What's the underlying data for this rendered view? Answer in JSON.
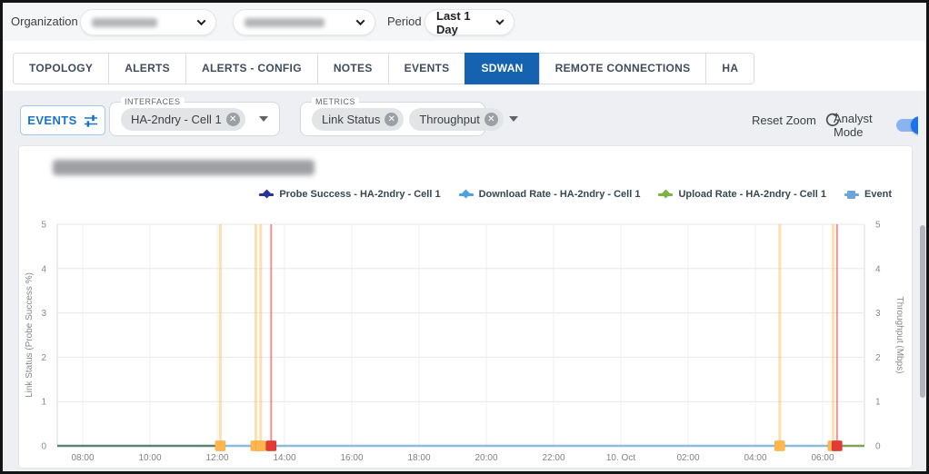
{
  "topbar": {
    "organization_label": "Organization",
    "organization_select": {
      "value_redacted": true
    },
    "device_select": {
      "value_redacted": true
    },
    "period_label": "Period",
    "period_value": "Last 1 Day"
  },
  "tabs": [
    {
      "label": "TOPOLOGY",
      "active": false
    },
    {
      "label": "ALERTS",
      "active": false
    },
    {
      "label": "ALERTS - CONFIG",
      "active": false
    },
    {
      "label": "NOTES",
      "active": false
    },
    {
      "label": "EVENTS",
      "active": false
    },
    {
      "label": "SDWAN",
      "active": true
    },
    {
      "label": "REMOTE CONNECTIONS",
      "active": false
    },
    {
      "label": "HA",
      "active": false
    }
  ],
  "toolbar": {
    "events_button_label": "EVENTS",
    "interfaces_select": {
      "label": "INTERFACES",
      "chips": [
        "HA-2ndry - Cell 1"
      ]
    },
    "metrics_select": {
      "label": "METRICS",
      "chips": [
        "Link Status",
        "Throughput"
      ]
    },
    "reset_zoom_label": "Reset Zoom",
    "analyst_mode": {
      "label": "Analyst Mode",
      "enabled": true
    }
  },
  "chart_data": {
    "type": "line",
    "title_redacted": true,
    "x_ticks": [
      "08:00",
      "10:00",
      "12:00",
      "14:00",
      "16:00",
      "18:00",
      "20:00",
      "22:00",
      "10. Oct",
      "02:00",
      "04:00",
      "06:00"
    ],
    "y_axis_left": {
      "label": "Link Status (Probe Success %)",
      "min": 0,
      "max": 5,
      "ticks": [
        0,
        1,
        2,
        3,
        4,
        5
      ]
    },
    "y_axis_right": {
      "label": "Throughput (Mbps)",
      "min": 0,
      "max": 5,
      "ticks": [
        0,
        1,
        2,
        3,
        4,
        5
      ]
    },
    "series": [
      {
        "name": "Probe Success - HA-2ndry - Cell 1",
        "color": "#283593",
        "kind": "line",
        "constant_value": 0
      },
      {
        "name": "Download Rate - HA-2ndry - Cell 1",
        "color": "#4aa3df",
        "kind": "line",
        "constant_value": 0
      },
      {
        "name": "Upload Rate - HA-2ndry - Cell 1",
        "color": "#7cb342",
        "kind": "line",
        "constant_value": 0
      },
      {
        "name": "Event",
        "color": "#6aa5dc",
        "kind": "event-marker"
      }
    ],
    "severity_colors": {
      "warning": "#ffb74d",
      "error": "#e53935"
    },
    "events": [
      {
        "time_approx": "12:05",
        "severity": "warning",
        "x_frac": 0.202
      },
      {
        "time_approx": "13:05",
        "severity": "warning",
        "x_frac": 0.246
      },
      {
        "time_approx": "13:15",
        "severity": "warning",
        "x_frac": 0.252
      },
      {
        "time_approx": "13:30",
        "severity": "error",
        "x_frac": 0.265
      },
      {
        "time_approx": "04:30",
        "severity": "warning",
        "x_frac": 0.895
      },
      {
        "time_approx": "06:00",
        "severity": "warning",
        "x_frac": 0.961
      },
      {
        "time_approx": "06:10",
        "severity": "error",
        "x_frac": 0.966
      }
    ],
    "baseline_segments": [
      {
        "from": 0.0,
        "to": 0.202,
        "color": "#5a8276"
      },
      {
        "from": 0.202,
        "to": 0.961,
        "color": "#8cbbdb"
      },
      {
        "from": 0.961,
        "to": 1.0,
        "color": "#7fa05a"
      }
    ],
    "grid": true,
    "legend_position": "top-right"
  }
}
